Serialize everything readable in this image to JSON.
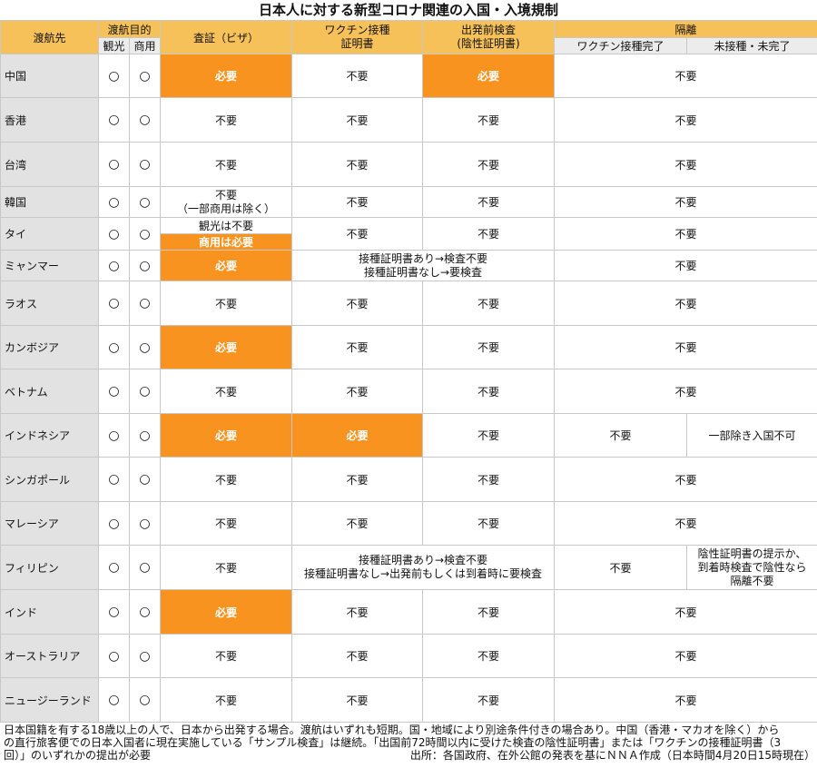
{
  "title": "日本人に対する新型コロナ関連の入国・入境規制",
  "headers": {
    "destination": "渡航先",
    "purpose": "渡航目的",
    "tourism": "観光",
    "business": "商用",
    "visa": "査証（ビザ）",
    "vaccine_cert_l1": "ワクチン接種",
    "vaccine_cert_l2": "証明書",
    "pretest_l1": "出発前検査",
    "pretest_l2": "(陰性証明書)",
    "quarantine": "隔離",
    "vaccinated": "ワクチン接種完了",
    "unvaccinated": "未接種・未完了"
  },
  "mark": "○",
  "rows": [
    {
      "dest": "中国",
      "visa": "必要",
      "vaccine": "不要",
      "pretest": "必要",
      "quarantine": "不要"
    },
    {
      "dest": "香港",
      "visa": "不要",
      "vaccine": "不要",
      "pretest": "不要",
      "quarantine": "不要"
    },
    {
      "dest": "台湾",
      "visa": "不要",
      "vaccine": "不要",
      "pretest": "不要",
      "quarantine": "不要"
    },
    {
      "dest": "韓国",
      "visa_l1": "不要",
      "visa_l2": "（一部商用は除く）",
      "vaccine": "不要",
      "pretest": "不要",
      "quarantine": "不要"
    },
    {
      "dest": "タイ",
      "visa_l1": "観光は不要",
      "visa_l2": "商用は必要",
      "vaccine": "不要",
      "pretest": "不要",
      "quarantine": "不要"
    },
    {
      "dest": "ミャンマー",
      "visa": "必要",
      "merged_l1": "接種証明書あり→検査不要",
      "merged_l2": "接種証明書なし→要検査",
      "quarantine": "不要"
    },
    {
      "dest": "ラオス",
      "visa": "不要",
      "vaccine": "不要",
      "pretest": "不要",
      "quarantine": "不要"
    },
    {
      "dest": "カンボジア",
      "visa": "必要",
      "vaccine": "不要",
      "pretest": "不要",
      "quarantine": "不要"
    },
    {
      "dest": "ベトナム",
      "visa": "不要",
      "vaccine": "不要",
      "pretest": "不要",
      "quarantine": "不要"
    },
    {
      "dest": "インドネシア",
      "visa": "必要",
      "vaccine": "必要",
      "pretest": "不要",
      "q_vacc": "不要",
      "q_unvacc": "一部除き入国不可"
    },
    {
      "dest": "シンガポール",
      "visa": "不要",
      "vaccine": "不要",
      "pretest": "不要",
      "quarantine": "不要"
    },
    {
      "dest": "マレーシア",
      "visa": "不要",
      "vaccine": "不要",
      "pretest": "不要",
      "quarantine": "不要"
    },
    {
      "dest": "フィリピン",
      "visa": "不要",
      "merged_l1": "接種証明書あり→検査不要",
      "merged_l2": "接種証明書なし→出発前もしくは到着時に要検査",
      "q_vacc": "不要",
      "q_unvacc_l1": "陰性証明書の提示か、",
      "q_unvacc_l2": "到着時検査で陰性なら",
      "q_unvacc_l3": "隔離不要"
    },
    {
      "dest": "インド",
      "visa": "必要",
      "vaccine": "不要",
      "pretest": "不要",
      "quarantine": "不要"
    },
    {
      "dest": "オーストラリア",
      "visa": "不要",
      "vaccine": "不要",
      "pretest": "不要",
      "quarantine": "不要"
    },
    {
      "dest": "ニュージーランド",
      "visa": "不要",
      "vaccine": "不要",
      "pretest": "不要",
      "quarantine": "不要"
    }
  ],
  "footnote": {
    "line1": "日本国籍を有する18歳以上の人で、日本から出発する場合。渡航はいずれも短期。国・地域により別途条件付きの場合あり。中国（香港・マカオを除く）から",
    "line2": "の直行旅客便での日本入国者に現在実施している「サンプル検査」は継続。「出国前72時間以内に受けた検査の陰性証明書」または「ワクチンの接種証明書（3",
    "line3": "回）」のいずれかの提出が必要",
    "source": "出所：各国政府、在外公館の発表を基にＮＮＡ作成（日本時間4月20日15時現在）"
  }
}
